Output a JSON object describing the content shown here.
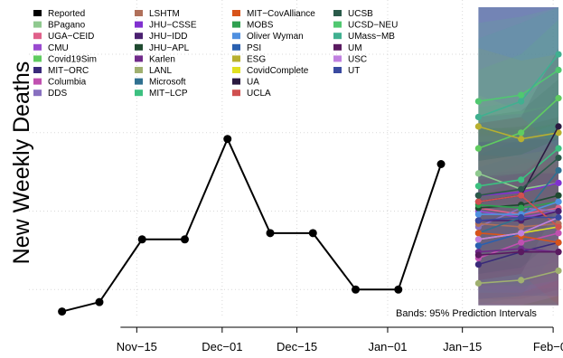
{
  "chart_data": {
    "type": "line",
    "ylabel": "New Weekly Deaths",
    "xlabel": "",
    "x_ticks": [
      "Nov−15",
      "Dec−01",
      "Dec−15",
      "Jan−01",
      "Jan−15",
      "Feb−01"
    ],
    "x_tick_days": [
      15,
      31,
      45,
      62,
      76,
      93
    ],
    "x_range_days": [
      -3,
      94
    ],
    "y_range": [
      0,
      100
    ],
    "grid": true,
    "legend_placement": "top-left",
    "annotation": "Bands: 95% Prediction Intervals",
    "series": [
      {
        "name": "Reported",
        "color": "#000000",
        "x_days": [
          1,
          8,
          16,
          24,
          32,
          40,
          48,
          56,
          64,
          72
        ],
        "y": [
          3,
          6,
          26,
          26,
          58,
          28,
          28,
          10,
          10,
          50
        ]
      }
    ],
    "forecast": {
      "x_days": [
        79,
        87,
        94
      ],
      "band": {
        "upper": [
          100,
          100,
          100
        ],
        "lower": [
          5,
          5,
          5
        ],
        "color": "#5a6fa8"
      },
      "models": [
        {
          "name": "BPagano",
          "color": "#8fc98f",
          "y": [
            47,
            42,
            44
          ]
        },
        {
          "name": "UGA−CEID",
          "color": "#e0608a",
          "y": [
            36,
            34,
            36
          ]
        },
        {
          "name": "CMU",
          "color": "#9a4ad0",
          "y": [
            35,
            33,
            35
          ]
        },
        {
          "name": "Covid19Sim",
          "color": "#60cc60",
          "y": [
            55,
            60,
            71
          ]
        },
        {
          "name": "MIT−ORC",
          "color": "#3a2a7a",
          "y": [
            18,
            22,
            25
          ]
        },
        {
          "name": "Columbia",
          "color": "#c050b0",
          "y": [
            20,
            25,
            28
          ]
        },
        {
          "name": "DDS",
          "color": "#8870c0",
          "y": [
            30,
            36,
            35
          ]
        },
        {
          "name": "LSHTM",
          "color": "#b0705a",
          "y": [
            31,
            30,
            31
          ]
        },
        {
          "name": "JHU−CSSE",
          "color": "#8030d0",
          "y": [
            40,
            41,
            44
          ]
        },
        {
          "name": "JHU−IDD",
          "color": "#4a2070",
          "y": [
            32,
            32,
            35
          ]
        },
        {
          "name": "JHU−APL",
          "color": "#1f4a30",
          "y": [
            36,
            37,
            40
          ]
        },
        {
          "name": "Karlen",
          "color": "#702a8a",
          "y": [
            22,
            23,
            22
          ]
        },
        {
          "name": "LANL",
          "color": "#a0b070",
          "y": [
            12,
            13,
            16
          ]
        },
        {
          "name": "Microsoft",
          "color": "#2f7090",
          "y": [
            28,
            33,
            48
          ]
        },
        {
          "name": "MIT−LCP",
          "color": "#3cc080",
          "y": [
            43,
            45,
            55
          ]
        },
        {
          "name": "MIT−CovAlliance",
          "color": "#d8541a",
          "y": [
            28,
            27,
            25
          ]
        },
        {
          "name": "MOBS",
          "color": "#2fa050",
          "y": [
            37,
            36,
            38
          ]
        },
        {
          "name": "Oliver Wyman",
          "color": "#5090e0",
          "y": [
            34,
            34,
            38
          ]
        },
        {
          "name": "PSI",
          "color": "#2a60b0",
          "y": [
            24,
            28,
            30
          ]
        },
        {
          "name": "ESG",
          "color": "#b8b030",
          "y": [
            62,
            58,
            60
          ]
        },
        {
          "name": "CovidComplete",
          "color": "#e0e020",
          "y": [
            26,
            28,
            30
          ]
        },
        {
          "name": "UA",
          "color": "#2a1a40",
          "y": [
            38,
            40,
            62
          ]
        },
        {
          "name": "UCLA",
          "color": "#d05050",
          "y": [
            38,
            40,
            30
          ]
        },
        {
          "name": "UCSB",
          "color": "#2a5a4a",
          "y": [
            40,
            42,
            52
          ]
        },
        {
          "name": "UCSD−NEU",
          "color": "#50c870",
          "y": [
            70,
            72,
            80
          ]
        },
        {
          "name": "UMass−MB",
          "color": "#40b090",
          "y": [
            65,
            70,
            85
          ]
        },
        {
          "name": "UM",
          "color": "#5a1a60",
          "y": [
            21,
            22,
            22
          ]
        },
        {
          "name": "USC",
          "color": "#c080e0",
          "y": [
            26,
            28,
            33
          ]
        },
        {
          "name": "UT",
          "color": "#3a4aa0",
          "y": [
            32,
            33,
            33
          ]
        }
      ]
    }
  }
}
